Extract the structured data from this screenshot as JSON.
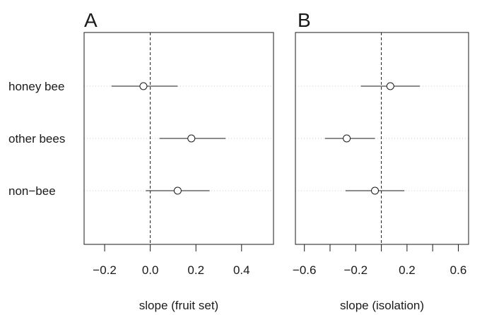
{
  "chart_data": [
    {
      "panel": "A",
      "type": "scatter",
      "title": "A",
      "xlabel": "slope (fruit set)",
      "ylabel": "",
      "categories": [
        "honey bee",
        "other bees",
        "non−bee"
      ],
      "xlim": [
        -0.29,
        0.54
      ],
      "xticks": [
        -0.2,
        0.0,
        0.2,
        0.4
      ],
      "xtick_labels": [
        "−0.2",
        "0.0",
        "0.2",
        "0.4"
      ],
      "reference_line": 0,
      "points": [
        {
          "category": "honey bee",
          "estimate": -0.03,
          "lower": -0.17,
          "upper": 0.12
        },
        {
          "category": "other bees",
          "estimate": 0.18,
          "lower": 0.04,
          "upper": 0.33
        },
        {
          "category": "non−bee",
          "estimate": 0.12,
          "lower": -0.02,
          "upper": 0.26
        }
      ],
      "grid": "horizontal dotted lines at categories",
      "legend": "none"
    },
    {
      "panel": "B",
      "type": "scatter",
      "title": "B",
      "xlabel": "slope (isolation)",
      "ylabel": "",
      "categories": [
        "honey bee",
        "other bees",
        "non−bee"
      ],
      "xlim": [
        -0.67,
        0.68
      ],
      "xticks": [
        -0.6,
        -0.4,
        -0.2,
        0.0,
        0.2,
        0.4,
        0.6
      ],
      "xtick_labels": [
        "−0.6",
        "",
        "−0.2",
        "",
        "0.2",
        "",
        "0.6"
      ],
      "reference_line": 0,
      "points": [
        {
          "category": "honey bee",
          "estimate": 0.07,
          "lower": -0.16,
          "upper": 0.3
        },
        {
          "category": "other bees",
          "estimate": -0.27,
          "lower": -0.44,
          "upper": -0.05
        },
        {
          "category": "non−bee",
          "estimate": -0.05,
          "lower": -0.28,
          "upper": 0.18
        }
      ],
      "grid": "horizontal dotted lines at categories",
      "legend": "none"
    }
  ]
}
